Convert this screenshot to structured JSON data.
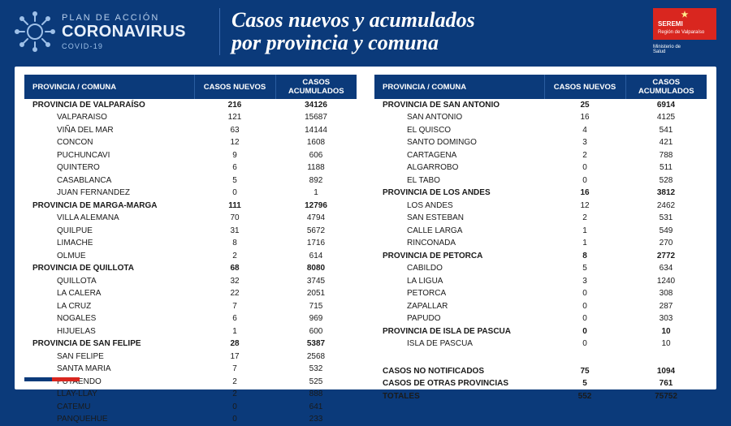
{
  "colors": {
    "page_bg": "#0b3a7a",
    "panel_bg": "#ffffff",
    "header_blue": "#0b3a7a",
    "accent_red": "#d9261f",
    "text_light": "#e8f0fb"
  },
  "header": {
    "plan_line": "PLAN DE ACCIÓN",
    "brand": "CORONAVIRUS",
    "subbrand": "COVID-19",
    "title_l1": "Casos nuevos y acumulados",
    "title_l2": "por provincia y comuna",
    "seremi_top": "SEREMI",
    "seremi_sub": "Región de Valparaíso",
    "ministerio_l1": "Ministerio de",
    "ministerio_l2": "Salud"
  },
  "table_headers": {
    "col1": "PROVINCIA / COMUNA",
    "col2": "CASOS NUEVOS",
    "col3": "CASOS ACUMULADOS"
  },
  "left": [
    {
      "t": "prov",
      "name": "PROVINCIA DE VALPARAÍSO",
      "new": "216",
      "acc": "34126"
    },
    {
      "t": "row",
      "name": "VALPARAISO",
      "new": "121",
      "acc": "15687"
    },
    {
      "t": "row",
      "name": "VIÑA DEL MAR",
      "new": "63",
      "acc": "14144"
    },
    {
      "t": "row",
      "name": "CONCON",
      "new": "12",
      "acc": "1608"
    },
    {
      "t": "row",
      "name": "PUCHUNCAVI",
      "new": "9",
      "acc": "606"
    },
    {
      "t": "row",
      "name": "QUINTERO",
      "new": "6",
      "acc": "1188"
    },
    {
      "t": "row",
      "name": "CASABLANCA",
      "new": "5",
      "acc": "892"
    },
    {
      "t": "row",
      "name": "JUAN FERNANDEZ",
      "new": "0",
      "acc": "1"
    },
    {
      "t": "prov",
      "name": "PROVINCIA DE MARGA-MARGA",
      "new": "111",
      "acc": "12796"
    },
    {
      "t": "row",
      "name": "VILLA ALEMANA",
      "new": "70",
      "acc": "4794"
    },
    {
      "t": "row",
      "name": "QUILPUE",
      "new": "31",
      "acc": "5672"
    },
    {
      "t": "row",
      "name": "LIMACHE",
      "new": "8",
      "acc": "1716"
    },
    {
      "t": "row",
      "name": "OLMUE",
      "new": "2",
      "acc": "614"
    },
    {
      "t": "prov",
      "name": "PROVINCIA DE QUILLOTA",
      "new": "68",
      "acc": "8080"
    },
    {
      "t": "row",
      "name": "QUILLOTA",
      "new": "32",
      "acc": "3745"
    },
    {
      "t": "row",
      "name": "LA CALERA",
      "new": "22",
      "acc": "2051"
    },
    {
      "t": "row",
      "name": "LA CRUZ",
      "new": "7",
      "acc": "715"
    },
    {
      "t": "row",
      "name": "NOGALES",
      "new": "6",
      "acc": "969"
    },
    {
      "t": "row",
      "name": "HIJUELAS",
      "new": "1",
      "acc": "600"
    },
    {
      "t": "prov",
      "name": "PROVINCIA DE SAN FELIPE",
      "new": "28",
      "acc": "5387"
    },
    {
      "t": "row",
      "name": "SAN FELIPE",
      "new": "17",
      "acc": "2568"
    },
    {
      "t": "row",
      "name": "SANTA MARIA",
      "new": "7",
      "acc": "532"
    },
    {
      "t": "row",
      "name": "PUTAENDO",
      "new": "2",
      "acc": "525"
    },
    {
      "t": "row",
      "name": "LLAY-LLAY",
      "new": "2",
      "acc": "888"
    },
    {
      "t": "row",
      "name": "CATEMU",
      "new": "0",
      "acc": "641"
    },
    {
      "t": "row",
      "name": "PANQUEHUE",
      "new": "0",
      "acc": "233"
    }
  ],
  "right": [
    {
      "t": "prov",
      "name": "PROVINCIA DE SAN ANTONIO",
      "new": "25",
      "acc": "6914"
    },
    {
      "t": "row",
      "name": "SAN ANTONIO",
      "new": "16",
      "acc": "4125"
    },
    {
      "t": "row",
      "name": "EL QUISCO",
      "new": "4",
      "acc": "541"
    },
    {
      "t": "row",
      "name": "SANTO DOMINGO",
      "new": "3",
      "acc": "421"
    },
    {
      "t": "row",
      "name": "CARTAGENA",
      "new": "2",
      "acc": "788"
    },
    {
      "t": "row",
      "name": "ALGARROBO",
      "new": "0",
      "acc": "511"
    },
    {
      "t": "row",
      "name": "EL TABO",
      "new": "0",
      "acc": "528"
    },
    {
      "t": "prov",
      "name": "PROVINCIA DE LOS ANDES",
      "new": "16",
      "acc": "3812"
    },
    {
      "t": "row",
      "name": "LOS ANDES",
      "new": "12",
      "acc": "2462"
    },
    {
      "t": "row",
      "name": "SAN ESTEBAN",
      "new": "2",
      "acc": "531"
    },
    {
      "t": "row",
      "name": "CALLE LARGA",
      "new": "1",
      "acc": "549"
    },
    {
      "t": "row",
      "name": "RINCONADA",
      "new": "1",
      "acc": "270"
    },
    {
      "t": "prov",
      "name": "PROVINCIA DE PETORCA",
      "new": "8",
      "acc": "2772"
    },
    {
      "t": "row",
      "name": "CABILDO",
      "new": "5",
      "acc": "634"
    },
    {
      "t": "row",
      "name": "LA LIGUA",
      "new": "3",
      "acc": "1240"
    },
    {
      "t": "row",
      "name": "PETORCA",
      "new": "0",
      "acc": "308"
    },
    {
      "t": "row",
      "name": "ZAPALLAR",
      "new": "0",
      "acc": "287"
    },
    {
      "t": "row",
      "name": "PAPUDO",
      "new": "0",
      "acc": "303"
    },
    {
      "t": "prov",
      "name": "PROVINCIA DE ISLA DE PASCUA",
      "new": "0",
      "acc": "10"
    },
    {
      "t": "row",
      "name": "ISLA DE PASCUA",
      "new": "0",
      "acc": "10"
    }
  ],
  "summary": [
    {
      "name": "CASOS NO NOTIFICADOS",
      "new": "75",
      "acc": "1094"
    },
    {
      "name": "CASOS DE OTRAS PROVINCIAS",
      "new": "5",
      "acc": "761"
    },
    {
      "name": "TOTALES",
      "new": "552",
      "acc": "75752"
    }
  ]
}
